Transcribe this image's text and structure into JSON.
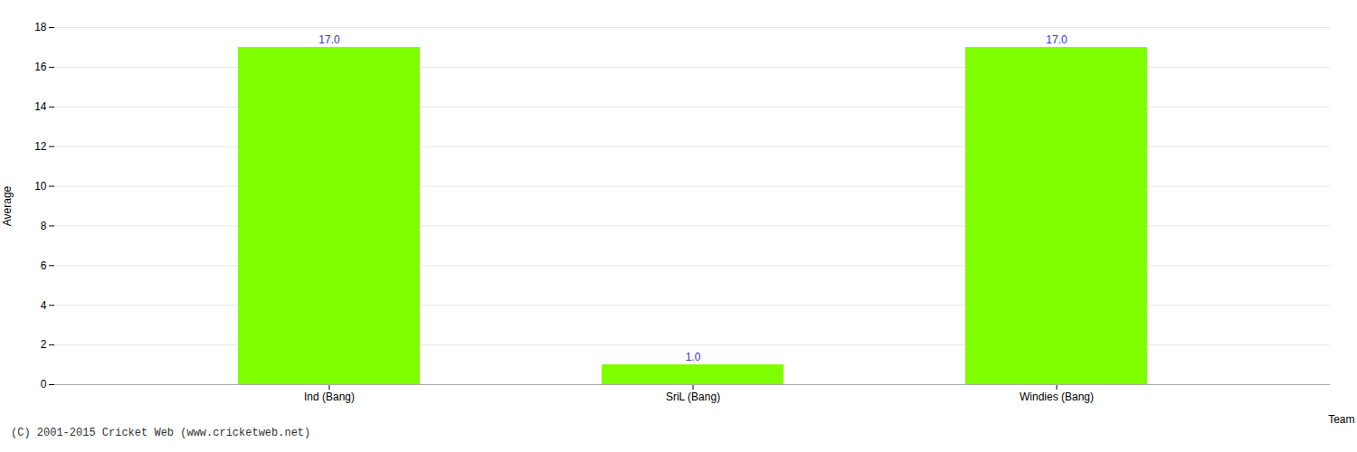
{
  "chart_data": {
    "type": "bar",
    "categories": [
      "Ind (Bang)",
      "SriL (Bang)",
      "Windies (Bang)"
    ],
    "values": [
      17.0,
      1.0,
      17.0
    ],
    "value_labels": [
      "17.0",
      "1.0",
      "17.0"
    ],
    "color": "#7fff00",
    "xlabel": "Team",
    "ylabel": "Average",
    "ylim": [
      0,
      18
    ],
    "yticks": [
      0,
      2,
      4,
      6,
      8,
      10,
      12,
      14,
      16,
      18
    ],
    "grid": true,
    "data_labels": true,
    "annotations": [
      "(C) 2001-2015 Cricket Web (www.cricketweb.net)"
    ]
  }
}
